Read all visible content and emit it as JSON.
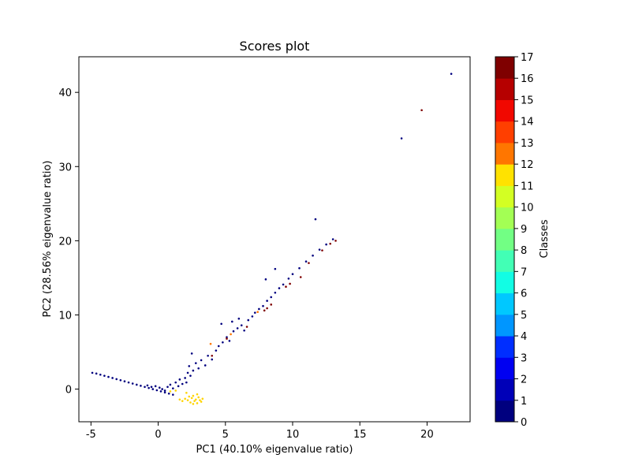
{
  "chart_data": {
    "type": "scatter",
    "title": "Scores plot",
    "xlabel": "PC1 (40.10% eigenvalue ratio)",
    "ylabel": "PC2 (28.56% eigenvalue ratio)",
    "xlim": [
      -5.9,
      23.2
    ],
    "ylim": [
      -4.4,
      44.8
    ],
    "xticks": [
      -5,
      0,
      5,
      10,
      15,
      20
    ],
    "yticks": [
      0,
      10,
      20,
      30,
      40
    ],
    "grid": false,
    "colorbar": {
      "label": "Classes",
      "ticks": [
        0,
        1,
        2,
        3,
        4,
        5,
        6,
        7,
        8,
        9,
        10,
        11,
        12,
        13,
        14,
        15,
        16,
        17
      ],
      "colors": [
        "#00007f",
        "#0000b8",
        "#0000f1",
        "#002eff",
        "#0062ff",
        "#0096ff",
        "#00c8ff",
        "#12fde4",
        "#42ffb5",
        "#72ff84",
        "#a3ff54",
        "#d3ff23",
        "#ffe200",
        "#ffab00",
        "#ff7600",
        "#ff3f00",
        "#f10800",
        "#b60000",
        "#7f0000"
      ],
      "colormap_levels": 17
    },
    "series": [
      {
        "class": 0,
        "color": "#00007f",
        "points": [
          [
            -4.9,
            2.2
          ],
          [
            -4.6,
            2.1
          ],
          [
            -4.3,
            1.95
          ],
          [
            -4.0,
            1.8
          ],
          [
            -3.7,
            1.65
          ],
          [
            -3.4,
            1.5
          ],
          [
            -3.1,
            1.35
          ],
          [
            -2.8,
            1.2
          ],
          [
            -2.5,
            1.05
          ],
          [
            -2.2,
            0.9
          ],
          [
            -1.9,
            0.75
          ],
          [
            -1.6,
            0.6
          ],
          [
            -1.3,
            0.45
          ],
          [
            -1.0,
            0.3
          ],
          [
            -0.7,
            0.15
          ],
          [
            -0.4,
            0.0
          ],
          [
            -0.1,
            -0.15
          ],
          [
            0.2,
            -0.3
          ],
          [
            0.5,
            -0.45
          ],
          [
            0.8,
            -0.6
          ],
          [
            1.1,
            -0.75
          ],
          [
            -0.8,
            0.5
          ],
          [
            -0.5,
            0.3
          ],
          [
            -0.2,
            0.4
          ],
          [
            0.1,
            0.2
          ],
          [
            0.3,
            0.0
          ],
          [
            0.5,
            -0.2
          ],
          [
            0.7,
            0.3
          ],
          [
            0.9,
            0.6
          ],
          [
            1.1,
            0.1
          ],
          [
            1.3,
            0.9
          ],
          [
            1.5,
            0.4
          ],
          [
            1.6,
            1.3
          ],
          [
            1.8,
            0.7
          ],
          [
            2.0,
            1.5
          ],
          [
            2.2,
            2.2
          ],
          [
            2.1,
            0.9
          ],
          [
            2.4,
            1.8
          ],
          [
            2.6,
            2.5
          ],
          [
            2.3,
            3.1
          ],
          [
            2.5,
            4.8
          ],
          [
            2.8,
            3.5
          ],
          [
            3.0,
            2.8
          ],
          [
            3.2,
            3.9
          ],
          [
            3.5,
            3.2
          ],
          [
            3.7,
            4.5
          ],
          [
            4.0,
            4.0
          ],
          [
            4.3,
            5.2
          ],
          [
            4.5,
            5.8
          ],
          [
            4.8,
            6.3
          ],
          [
            5.1,
            7.0
          ],
          [
            5.3,
            6.5
          ],
          [
            5.6,
            7.8
          ],
          [
            5.9,
            8.2
          ],
          [
            6.2,
            8.6
          ],
          [
            6.4,
            7.9
          ],
          [
            6.7,
            9.3
          ],
          [
            7.0,
            9.8
          ],
          [
            7.2,
            10.3
          ],
          [
            7.5,
            10.8
          ],
          [
            7.8,
            11.2
          ],
          [
            8.1,
            11.9
          ],
          [
            8.4,
            12.4
          ],
          [
            8.7,
            13.0
          ],
          [
            9.0,
            13.6
          ],
          [
            9.3,
            14.1
          ],
          [
            9.7,
            14.9
          ],
          [
            10.0,
            15.5
          ],
          [
            10.5,
            16.3
          ],
          [
            11.0,
            17.2
          ],
          [
            11.5,
            18.0
          ],
          [
            12.0,
            18.8
          ],
          [
            12.5,
            19.5
          ],
          [
            13.0,
            20.2
          ],
          [
            4.7,
            8.8
          ],
          [
            5.5,
            9.1
          ],
          [
            6.0,
            9.5
          ],
          [
            8.7,
            16.2
          ],
          [
            8.0,
            14.8
          ],
          [
            11.7,
            22.9
          ],
          [
            18.1,
            33.8
          ],
          [
            21.8,
            42.5
          ]
        ]
      },
      {
        "class": 12,
        "color": "#ffd400",
        "points": [
          [
            1.6,
            -1.4
          ],
          [
            1.8,
            -1.6
          ],
          [
            2.0,
            -1.3
          ],
          [
            2.2,
            -1.5
          ],
          [
            2.4,
            -1.8
          ],
          [
            2.5,
            -1.2
          ],
          [
            2.6,
            -0.9
          ],
          [
            2.7,
            -1.6
          ],
          [
            2.8,
            -1.4
          ],
          [
            2.9,
            -1.9
          ],
          [
            3.0,
            -1.1
          ],
          [
            3.1,
            -1.5
          ],
          [
            3.2,
            -1.7
          ],
          [
            2.3,
            -1.0
          ],
          [
            2.6,
            -2.0
          ],
          [
            2.9,
            -0.7
          ],
          [
            0.9,
            -0.3
          ],
          [
            1.3,
            -0.2
          ],
          [
            2.1,
            -0.5
          ],
          [
            3.3,
            -1.3
          ]
        ]
      },
      {
        "class": 17,
        "color": "#7f0000",
        "points": [
          [
            4.0,
            4.5
          ],
          [
            5.1,
            6.8
          ],
          [
            6.6,
            8.4
          ],
          [
            7.9,
            10.6
          ],
          [
            8.1,
            10.9
          ],
          [
            8.4,
            11.4
          ],
          [
            9.5,
            13.8
          ],
          [
            9.8,
            14.2
          ],
          [
            10.6,
            15.1
          ],
          [
            11.2,
            17.0
          ],
          [
            12.2,
            18.7
          ],
          [
            12.8,
            19.6
          ],
          [
            13.2,
            20.0
          ],
          [
            19.6,
            37.6
          ]
        ]
      },
      {
        "class": 14,
        "color": "#ff7600",
        "points": [
          [
            3.9,
            6.1
          ],
          [
            5.4,
            7.4
          ],
          [
            7.4,
            10.4
          ]
        ]
      }
    ]
  }
}
